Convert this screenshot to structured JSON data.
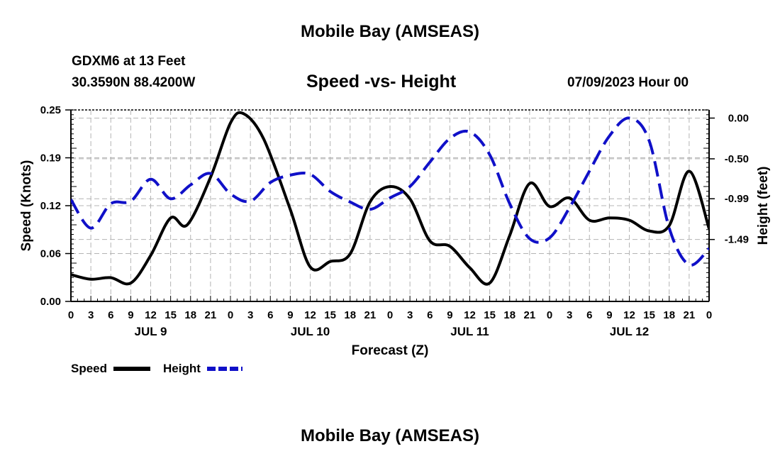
{
  "page": {
    "title": "Mobile Bay (AMSEAS)",
    "title_repeat": "Mobile Bay (AMSEAS)"
  },
  "station": {
    "line1": "GDXM6 at 13 Feet",
    "line2": "30.3590N  88.4200W"
  },
  "chart_title": "Speed -vs- Height",
  "run_time": "07/09/2023 Hour 00",
  "legend": {
    "speed_label": "Speed",
    "height_label": "Height"
  },
  "colors": {
    "speed": "#000000",
    "height": "#1010c8",
    "grid": "#b4b4b4"
  },
  "chart_data": {
    "type": "line",
    "title": "Speed -vs- Height",
    "xlabel": "Forecast (Z)",
    "ylabel": "Speed (Knots)",
    "y2label": "Height (feet)",
    "x_range_hours": [
      0,
      96
    ],
    "x_ticks_hours": [
      0,
      3,
      6,
      9,
      12,
      15,
      18,
      21,
      24,
      27,
      30,
      33,
      36,
      39,
      42,
      45,
      48,
      51,
      54,
      57,
      60,
      63,
      66,
      69,
      72,
      75,
      78,
      81,
      84,
      87,
      90,
      93,
      96
    ],
    "x_tick_labels": [
      "0",
      "3",
      "6",
      "9",
      "12",
      "15",
      "18",
      "21",
      "0",
      "3",
      "6",
      "9",
      "12",
      "15",
      "18",
      "21",
      "0",
      "3",
      "6",
      "9",
      "12",
      "15",
      "18",
      "21",
      "0",
      "3",
      "6",
      "9",
      "12",
      "15",
      "18",
      "21",
      "0"
    ],
    "day_labels": [
      {
        "hour": 12,
        "text": "JUL 9"
      },
      {
        "hour": 36,
        "text": "JUL 10"
      },
      {
        "hour": 60,
        "text": "JUL 11"
      },
      {
        "hour": 84,
        "text": "JUL 12"
      }
    ],
    "y_left": {
      "range": [
        0,
        0.25
      ],
      "ticks": [
        0,
        0.0625,
        0.125,
        0.1875,
        0.25
      ],
      "tick_labels": [
        "0.00",
        "0.06",
        "0.12",
        "0.19",
        "0.25"
      ]
    },
    "y_right": {
      "range": [
        -2.25,
        0.1
      ],
      "ticks": [
        0.0,
        -0.5,
        -0.99,
        -1.49
      ],
      "tick_labels": [
        "0.00",
        "-0.50",
        "-0.99",
        "-1.49"
      ]
    },
    "series": [
      {
        "name": "Speed",
        "axis": "left",
        "style": "solid",
        "x": [
          0,
          3,
          6,
          9,
          12,
          15,
          17.5,
          21,
          24,
          26,
          29,
          33,
          36,
          39,
          42,
          45,
          48,
          51,
          54,
          57,
          60,
          63,
          66,
          69,
          72,
          75,
          78,
          81,
          84,
          87,
          90,
          93,
          96
        ],
        "y": [
          0.035,
          0.029,
          0.031,
          0.024,
          0.06,
          0.109,
          0.1,
          0.162,
          0.233,
          0.245,
          0.212,
          0.12,
          0.045,
          0.052,
          0.062,
          0.13,
          0.15,
          0.134,
          0.079,
          0.072,
          0.044,
          0.024,
          0.086,
          0.154,
          0.124,
          0.135,
          0.106,
          0.109,
          0.106,
          0.092,
          0.099,
          0.17,
          0.095
        ]
      },
      {
        "name": "Height",
        "axis": "right",
        "style": "dashed",
        "x": [
          0,
          3,
          6,
          9,
          12,
          15,
          18,
          21,
          24,
          27,
          30,
          33,
          36,
          39,
          42,
          45,
          48,
          51,
          54,
          57,
          60,
          63,
          66,
          69,
          72,
          75,
          78,
          81,
          84,
          87,
          90,
          93,
          96
        ],
        "y": [
          -1.0,
          -1.35,
          -1.05,
          -1.02,
          -0.75,
          -0.99,
          -0.82,
          -0.68,
          -0.93,
          -1.02,
          -0.79,
          -0.7,
          -0.69,
          -0.9,
          -1.03,
          -1.12,
          -0.98,
          -0.84,
          -0.54,
          -0.25,
          -0.17,
          -0.45,
          -1.05,
          -1.48,
          -1.47,
          -1.1,
          -0.65,
          -0.22,
          0.0,
          -0.28,
          -1.35,
          -1.8,
          -1.6
        ]
      }
    ]
  }
}
